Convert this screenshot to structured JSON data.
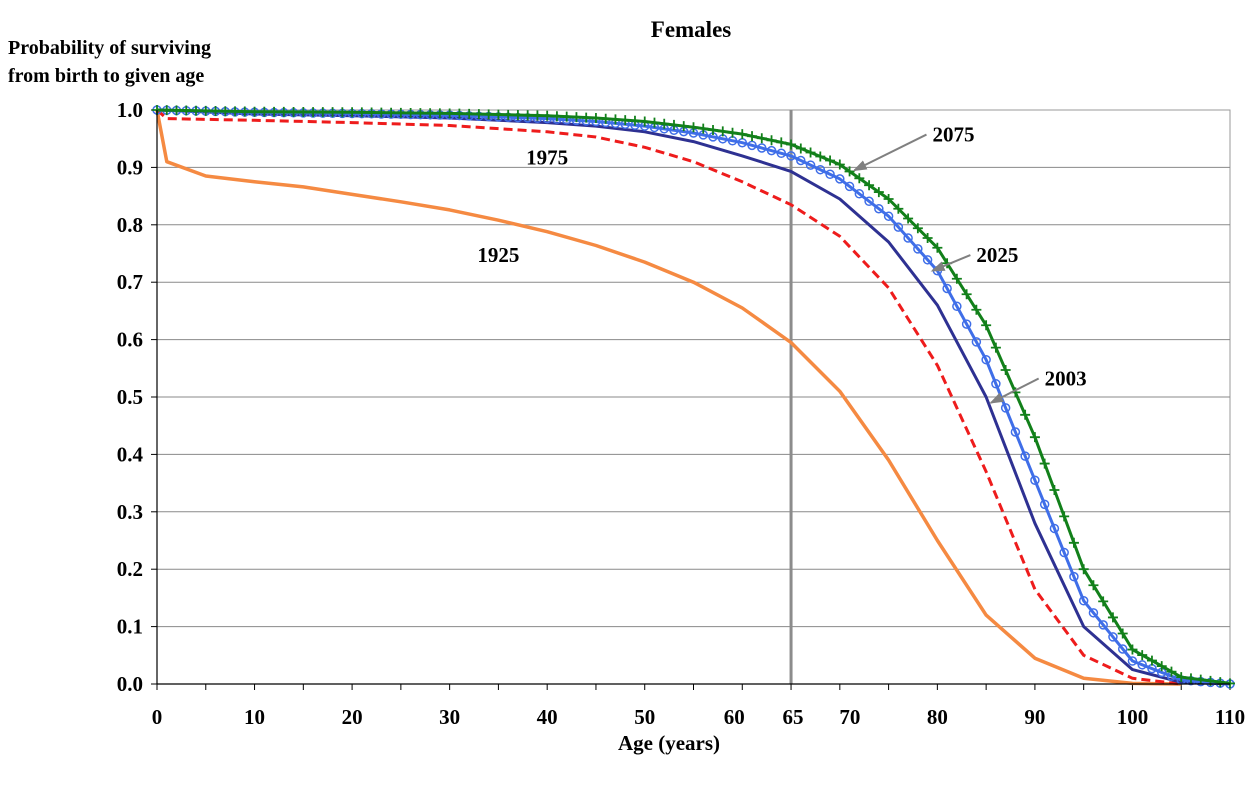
{
  "chart_data": {
    "type": "line",
    "title": "Females",
    "ylabel_lines": [
      "Probability of surviving",
      "from birth to given age"
    ],
    "xlabel": "Age (years)",
    "xlim": [
      0,
      110
    ],
    "ylim": [
      0,
      1
    ],
    "x_ticks": [
      0,
      10,
      20,
      30,
      40,
      50,
      60,
      65,
      70,
      80,
      90,
      100,
      110
    ],
    "x_tick_labels": [
      "0",
      "10",
      "20",
      "30",
      "40",
      "50",
      "60",
      "65",
      "70",
      "80",
      "90",
      "100",
      "110"
    ],
    "y_ticks": [
      0,
      0.1,
      0.2,
      0.3,
      0.4,
      0.5,
      0.6,
      0.7,
      0.8,
      0.9,
      1.0
    ],
    "y_tick_labels": [
      "0.0",
      "0.1",
      "0.2",
      "0.3",
      "0.4",
      "0.5",
      "0.6",
      "0.7",
      "0.8",
      "0.9",
      "1.0"
    ],
    "grid": "horizontal",
    "reference_line_x": 65,
    "series": [
      {
        "name": "1925",
        "color": "#f58a42",
        "style": "solid",
        "points": [
          [
            0,
            1.0
          ],
          [
            1,
            0.91
          ],
          [
            5,
            0.885
          ],
          [
            10,
            0.875
          ],
          [
            15,
            0.866
          ],
          [
            20,
            0.853
          ],
          [
            25,
            0.84
          ],
          [
            30,
            0.826
          ],
          [
            35,
            0.808
          ],
          [
            40,
            0.788
          ],
          [
            45,
            0.764
          ],
          [
            50,
            0.735
          ],
          [
            55,
            0.7
          ],
          [
            60,
            0.655
          ],
          [
            65,
            0.595
          ],
          [
            70,
            0.51
          ],
          [
            75,
            0.39
          ],
          [
            80,
            0.25
          ],
          [
            85,
            0.12
          ],
          [
            90,
            0.045
          ],
          [
            95,
            0.01
          ],
          [
            100,
            0.001
          ],
          [
            105,
            0.0
          ]
        ]
      },
      {
        "name": "1975",
        "color": "#ee1c1c",
        "style": "dashed",
        "points": [
          [
            0,
            1.0
          ],
          [
            1,
            0.985
          ],
          [
            10,
            0.982
          ],
          [
            20,
            0.978
          ],
          [
            30,
            0.973
          ],
          [
            40,
            0.962
          ],
          [
            45,
            0.953
          ],
          [
            50,
            0.935
          ],
          [
            55,
            0.91
          ],
          [
            60,
            0.875
          ],
          [
            65,
            0.835
          ],
          [
            70,
            0.78
          ],
          [
            75,
            0.69
          ],
          [
            80,
            0.555
          ],
          [
            85,
            0.37
          ],
          [
            90,
            0.165
          ],
          [
            95,
            0.05
          ],
          [
            100,
            0.01
          ],
          [
            105,
            0.0
          ]
        ]
      },
      {
        "name": "2003",
        "color": "#2e3192",
        "style": "solid",
        "points": [
          [
            0,
            1.0
          ],
          [
            10,
            0.993
          ],
          [
            20,
            0.99
          ],
          [
            30,
            0.986
          ],
          [
            40,
            0.978
          ],
          [
            45,
            0.972
          ],
          [
            50,
            0.962
          ],
          [
            55,
            0.945
          ],
          [
            60,
            0.92
          ],
          [
            65,
            0.893
          ],
          [
            70,
            0.845
          ],
          [
            75,
            0.77
          ],
          [
            80,
            0.66
          ],
          [
            85,
            0.5
          ],
          [
            90,
            0.28
          ],
          [
            95,
            0.1
          ],
          [
            100,
            0.025
          ],
          [
            105,
            0.003
          ],
          [
            110,
            0.0
          ]
        ]
      },
      {
        "name": "2025",
        "color": "#3f6ee8",
        "style": "circles",
        "points": [
          [
            0,
            1.0
          ],
          [
            10,
            0.996
          ],
          [
            20,
            0.994
          ],
          [
            30,
            0.991
          ],
          [
            40,
            0.985
          ],
          [
            45,
            0.98
          ],
          [
            50,
            0.972
          ],
          [
            55,
            0.96
          ],
          [
            60,
            0.943
          ],
          [
            65,
            0.92
          ],
          [
            70,
            0.88
          ],
          [
            75,
            0.815
          ],
          [
            80,
            0.72
          ],
          [
            85,
            0.565
          ],
          [
            90,
            0.355
          ],
          [
            95,
            0.145
          ],
          [
            100,
            0.04
          ],
          [
            105,
            0.007
          ],
          [
            110,
            0.0
          ]
        ]
      },
      {
        "name": "2075",
        "color": "#12801a",
        "style": "plus",
        "points": [
          [
            0,
            1.0
          ],
          [
            10,
            0.997
          ],
          [
            20,
            0.996
          ],
          [
            30,
            0.994
          ],
          [
            40,
            0.99
          ],
          [
            45,
            0.986
          ],
          [
            50,
            0.98
          ],
          [
            55,
            0.97
          ],
          [
            60,
            0.958
          ],
          [
            65,
            0.94
          ],
          [
            70,
            0.905
          ],
          [
            75,
            0.845
          ],
          [
            80,
            0.76
          ],
          [
            85,
            0.625
          ],
          [
            90,
            0.43
          ],
          [
            95,
            0.2
          ],
          [
            100,
            0.06
          ],
          [
            105,
            0.012
          ],
          [
            110,
            0.001
          ]
        ]
      }
    ],
    "annotations": [
      {
        "text": "1975",
        "x": 40,
        "y": 0.905,
        "arrow_to": null
      },
      {
        "text": "1925",
        "x": 35,
        "y": 0.735,
        "arrow_to": null
      },
      {
        "text": "2075",
        "x": 79.5,
        "y": 0.945,
        "arrow_to": [
          71.5,
          0.895
        ]
      },
      {
        "text": "2025",
        "x": 84,
        "y": 0.735,
        "arrow_to": [
          79.5,
          0.72
        ]
      },
      {
        "text": "2003",
        "x": 91,
        "y": 0.52,
        "arrow_to": [
          85.5,
          0.49
        ]
      }
    ]
  }
}
